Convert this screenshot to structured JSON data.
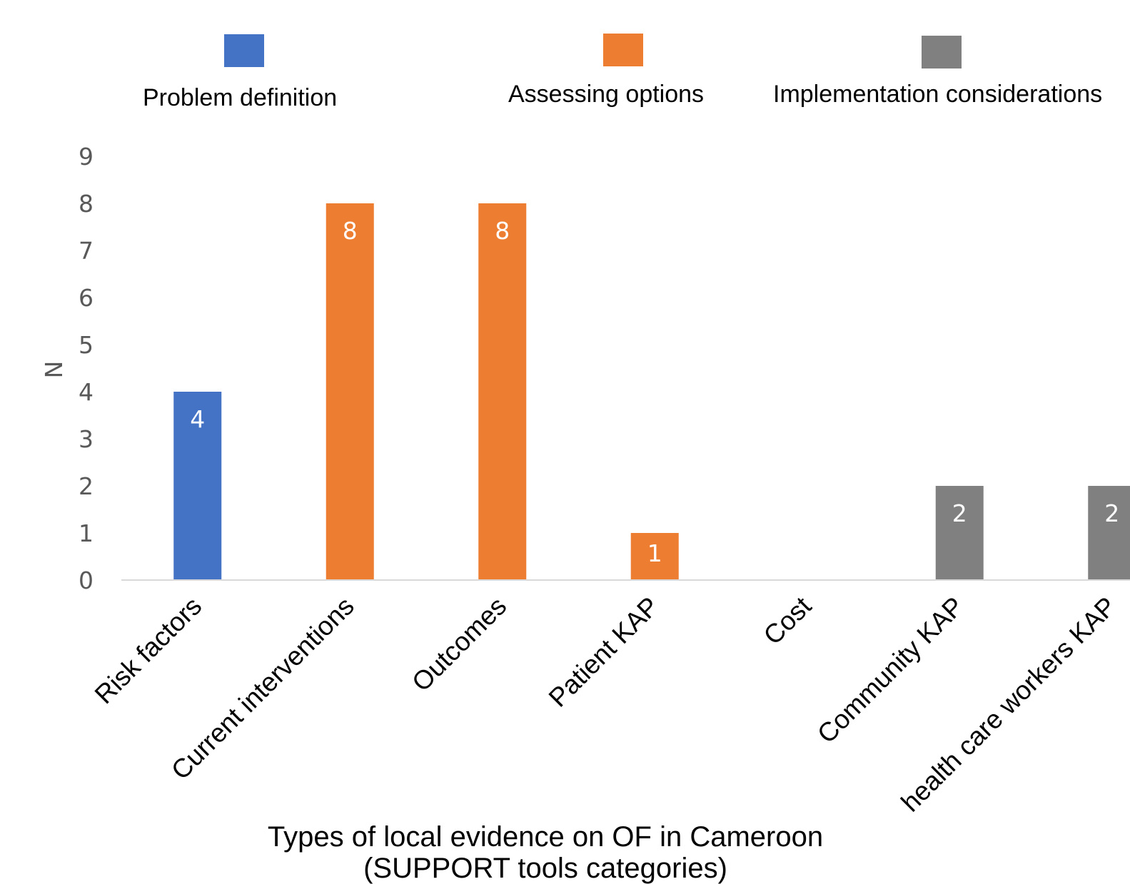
{
  "chart_data": {
    "type": "bar",
    "categories": [
      "Risk factors",
      "Current interventions",
      "Outcomes",
      "Patient KAP",
      "Cost",
      "Community KAP",
      "health care workers KAP"
    ],
    "values": [
      4,
      8,
      8,
      1,
      0,
      2,
      2
    ],
    "groups": [
      "Problem definition",
      "Assessing options",
      "Assessing options",
      "Assessing options",
      "Assessing options",
      "Implementation considerations",
      "Implementation considerations"
    ],
    "legend": [
      {
        "name": "Problem definition",
        "color": "#4472C4"
      },
      {
        "name": "Assessing options",
        "color": "#ED7D31"
      },
      {
        "name": "Implementation considerations",
        "color": "#808080"
      }
    ],
    "xlabel_line1": "Types of local evidence on OF in Cameroon",
    "xlabel_line2": "(SUPPORT tools categories)",
    "ylabel": "N",
    "ylim": [
      0,
      9
    ],
    "yticks": [
      "0",
      "1",
      "2",
      "3",
      "4",
      "5",
      "6",
      "7",
      "8",
      "9"
    ],
    "grid": false,
    "legend_position": "top"
  }
}
